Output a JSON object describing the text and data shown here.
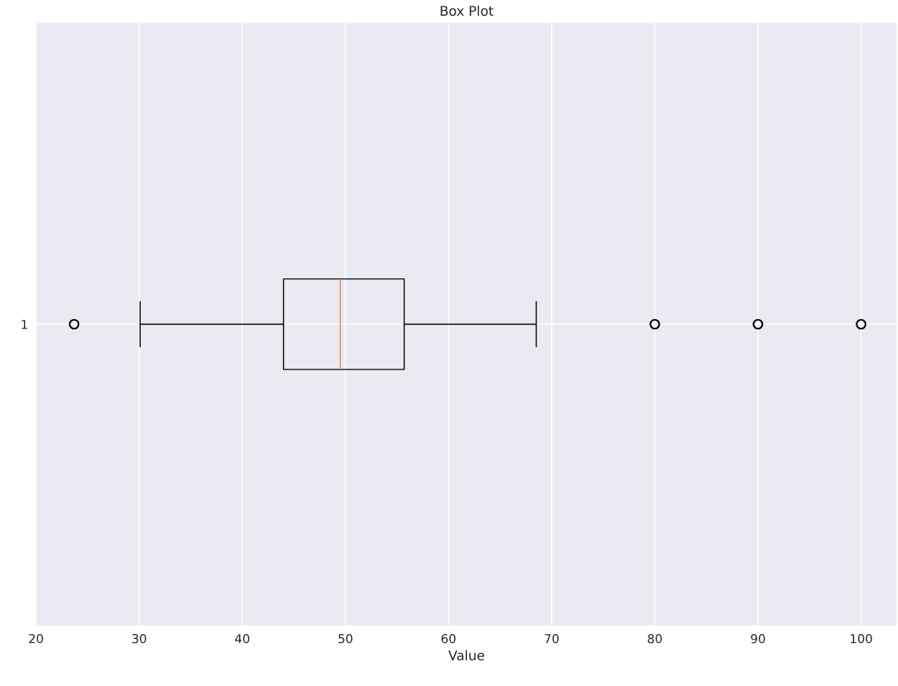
{
  "chart_data": {
    "type": "box",
    "title": "Box Plot",
    "xlabel": "Value",
    "orientation": "horizontal",
    "categories": [
      "1"
    ],
    "boxes": [
      {
        "low": 30.1,
        "q1": 44.0,
        "median": 49.5,
        "q3": 55.7,
        "high": 68.5,
        "outliers": [
          23.7,
          80,
          90,
          100
        ]
      }
    ],
    "xlim": [
      20,
      103.5
    ],
    "xticks": [
      20,
      30,
      40,
      50,
      60,
      70,
      80,
      90,
      100
    ],
    "grid": true
  }
}
